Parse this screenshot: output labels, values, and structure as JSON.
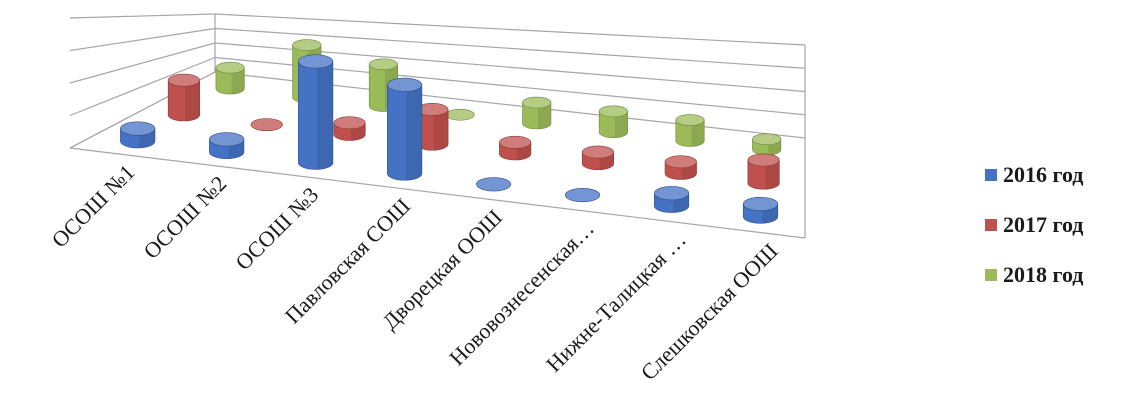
{
  "chart_data": {
    "type": "bar",
    "style": "3d-cylinder",
    "categories": [
      "ОСОШ №1",
      "ОСОШ №2",
      "ОСОШ №3",
      "Павловская СОШ",
      "Дворецкая ООШ",
      "Нововознесенская…",
      "Нижне-Талицкая …",
      "Слешковская ООШ"
    ],
    "series": [
      {
        "name": "2016 год",
        "color": "#4472C4",
        "values": [
          1,
          1,
          8,
          7,
          0,
          0,
          1,
          1
        ]
      },
      {
        "name": "2017 год",
        "color": "#C0504D",
        "values": [
          3,
          0,
          1,
          3,
          1,
          1,
          1,
          2
        ]
      },
      {
        "name": "2018 год",
        "color": "#9BBB59",
        "values": [
          2,
          5,
          4,
          0,
          2,
          2,
          2,
          1
        ]
      }
    ],
    "ylim": [
      0,
      8
    ],
    "grid": true,
    "legend_position": "right"
  }
}
